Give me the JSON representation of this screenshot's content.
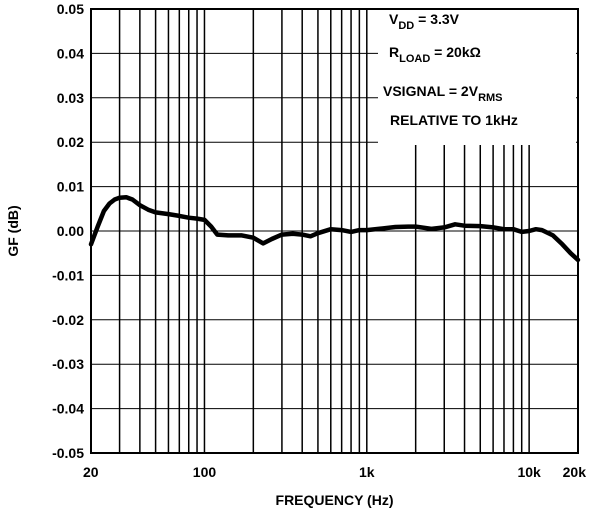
{
  "chart_data": {
    "type": "line",
    "title": "",
    "xlabel": "FREQUENCY (Hz)",
    "ylabel": "GF (dB)",
    "x_scale": "log",
    "xlim": [
      20,
      20000
    ],
    "ylim": [
      -0.05,
      0.05
    ],
    "grid": true,
    "x_tick_labels": [
      "20",
      "100",
      "1k",
      "10k",
      "20k"
    ],
    "x_tick_values": [
      20,
      100,
      1000,
      10000,
      20000
    ],
    "y_ticks": [
      0.05,
      0.04,
      0.03,
      0.02,
      0.01,
      0.0,
      -0.01,
      -0.02,
      -0.03,
      -0.04,
      -0.05
    ],
    "y_tick_labels": [
      "0.05",
      "0.04",
      "0.03",
      "0.02",
      "0.01",
      "0.00",
      "-0.01",
      "-0.02",
      "-0.03",
      "-0.04",
      "-0.05"
    ],
    "series": [
      {
        "x": [
          20,
          22,
          24,
          26,
          28,
          30,
          33,
          36,
          40,
          45,
          50,
          60,
          70,
          80,
          90,
          100,
          110,
          120,
          140,
          170,
          200,
          230,
          260,
          300,
          350,
          400,
          450,
          500,
          600,
          700,
          800,
          900,
          1000,
          1200,
          1500,
          1800,
          2000,
          2500,
          3000,
          3500,
          4000,
          5000,
          6000,
          7000,
          8000,
          9000,
          10000,
          11000,
          12000,
          14000,
          16000,
          18000,
          20000
        ],
        "y": [
          -0.003,
          0.001,
          0.0045,
          0.0062,
          0.0071,
          0.0075,
          0.0076,
          0.0071,
          0.0058,
          0.0048,
          0.0042,
          0.0038,
          0.0034,
          0.003,
          0.0028,
          0.0025,
          0.001,
          -0.0008,
          -0.001,
          -0.001,
          -0.0015,
          -0.0028,
          -0.0018,
          -0.0008,
          -0.0006,
          -0.0008,
          -0.0012,
          -0.0005,
          0.0004,
          0.0002,
          -0.0002,
          0.0002,
          0.0002,
          0.0005,
          0.0009,
          0.001,
          0.001,
          0.0005,
          0.0008,
          0.0015,
          0.0012,
          0.0011,
          0.0008,
          0.0004,
          0.0004,
          -0.0002,
          0.0,
          0.0004,
          0.0002,
          -0.001,
          -0.003,
          -0.005,
          -0.0065
        ]
      }
    ],
    "annotations": [
      {
        "main": "V",
        "sub": "DD",
        "rest": " = 3.3V"
      },
      {
        "main": "R",
        "sub": "LOAD",
        "rest": " = 20kΩ"
      },
      {
        "main": "VSIGNAL = 2V",
        "sub": "RMS",
        "rest": ""
      },
      {
        "main": "RELATIVE TO 1kHz",
        "sub": "",
        "rest": ""
      }
    ]
  }
}
